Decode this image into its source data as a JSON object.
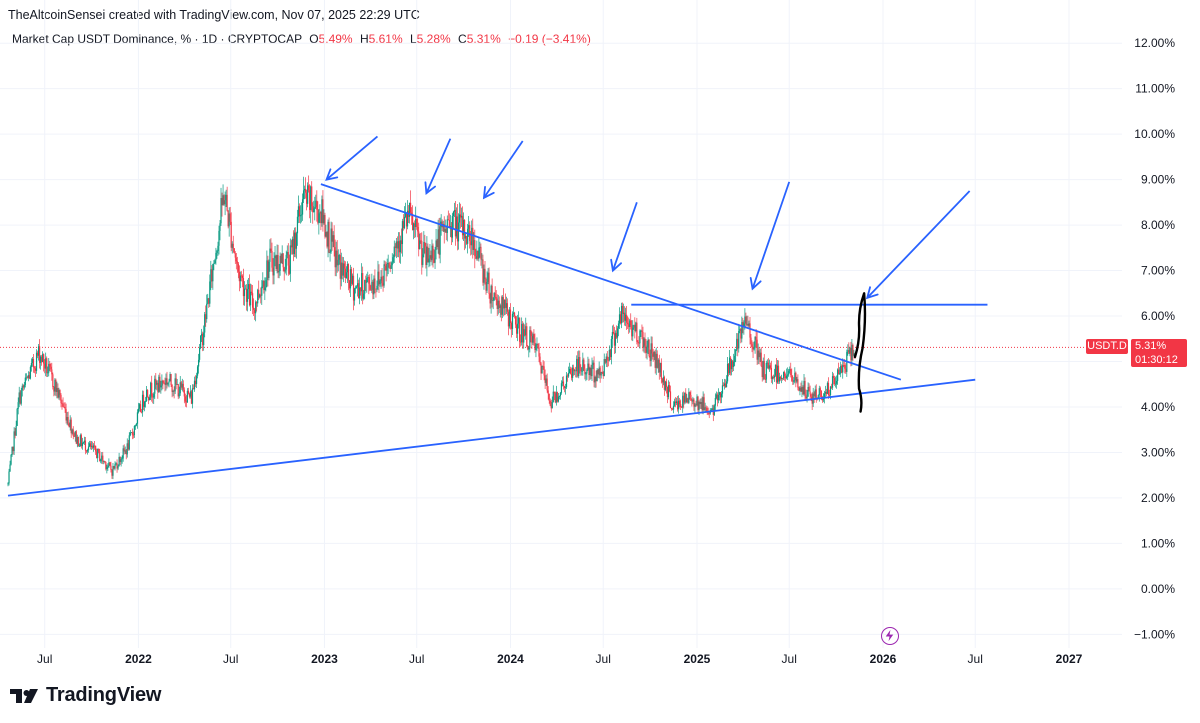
{
  "header": {
    "credit": "TheAltcoinSensei created with TradingView.com, Nov 07, 2025 22:29 UTC",
    "symbol": "Market Cap USDT Dominance, % · 1D · CRYPTOCAP",
    "o_key": "O",
    "o_val": "5.49%",
    "h_key": "H",
    "h_val": "5.61%",
    "l_key": "L",
    "l_val": "5.28%",
    "c_key": "C",
    "c_val": "5.31%",
    "change": "−0.19 (−3.41%)"
  },
  "price_label": {
    "ticker": "USDT.D",
    "price": "5.31%",
    "countdown": "01:30:12"
  },
  "brand": {
    "name": "TradingView"
  },
  "icons": {
    "logo": "tradingview-logo-icon",
    "event": "lightning-bolt-icon"
  },
  "colors": {
    "up": "#089981",
    "down": "#f23645",
    "trendline": "#2962ff",
    "drawing": "#000000"
  },
  "chart_data": {
    "type": "candlestick",
    "y_unit": "%",
    "ylim": [
      -1.3,
      12.4
    ],
    "y_ticks": [
      {
        "value": 12,
        "label": "12.00%"
      },
      {
        "value": 11,
        "label": "11.00%"
      },
      {
        "value": 10,
        "label": "10.00%"
      },
      {
        "value": 9,
        "label": "9.00%"
      },
      {
        "value": 8,
        "label": "8.00%"
      },
      {
        "value": 7,
        "label": "7.00%"
      },
      {
        "value": 6,
        "label": "6.00%"
      },
      {
        "value": 5,
        "label": "5.00%"
      },
      {
        "value": 4,
        "label": "4.00%"
      },
      {
        "value": 3,
        "label": "3.00%"
      },
      {
        "value": 2,
        "label": "2.00%"
      },
      {
        "value": 1,
        "label": "1.00%"
      },
      {
        "value": 0,
        "label": "0.00%"
      },
      {
        "value": -1,
        "label": "−1.00%"
      }
    ],
    "xlim": [
      "2021-04-20",
      "2027-04-15"
    ],
    "x_ticks": [
      {
        "date": "2021-07-01",
        "label": "Jul",
        "bold": false
      },
      {
        "date": "2022-01-01",
        "label": "2022",
        "bold": true
      },
      {
        "date": "2022-07-01",
        "label": "Jul",
        "bold": false
      },
      {
        "date": "2023-01-01",
        "label": "2023",
        "bold": true
      },
      {
        "date": "2023-07-01",
        "label": "Jul",
        "bold": false
      },
      {
        "date": "2024-01-01",
        "label": "2024",
        "bold": true
      },
      {
        "date": "2024-07-01",
        "label": "Jul",
        "bold": false
      },
      {
        "date": "2025-01-01",
        "label": "2025",
        "bold": true
      },
      {
        "date": "2025-07-01",
        "label": "Jul",
        "bold": false
      },
      {
        "date": "2026-01-01",
        "label": "2026",
        "bold": true
      },
      {
        "date": "2026-07-01",
        "label": "Jul",
        "bold": false
      },
      {
        "date": "2027-01-01",
        "label": "2027",
        "bold": true
      }
    ],
    "grid": true,
    "last_price": 5.31,
    "price_path": [
      {
        "date": "2021-04-20",
        "value": 2.3
      },
      {
        "date": "2021-05-12",
        "value": 4.2
      },
      {
        "date": "2021-06-20",
        "value": 5.2
      },
      {
        "date": "2021-07-20",
        "value": 4.5
      },
      {
        "date": "2021-09-01",
        "value": 3.3
      },
      {
        "date": "2021-10-10",
        "value": 3.0
      },
      {
        "date": "2021-11-10",
        "value": 2.6
      },
      {
        "date": "2021-12-10",
        "value": 3.1
      },
      {
        "date": "2022-01-15",
        "value": 4.3
      },
      {
        "date": "2022-02-25",
        "value": 4.6
      },
      {
        "date": "2022-04-15",
        "value": 4.2
      },
      {
        "date": "2022-05-10",
        "value": 5.8
      },
      {
        "date": "2022-06-18",
        "value": 8.7
      },
      {
        "date": "2022-07-15",
        "value": 7.0
      },
      {
        "date": "2022-08-15",
        "value": 6.2
      },
      {
        "date": "2022-09-15",
        "value": 7.2
      },
      {
        "date": "2022-10-25",
        "value": 7.2
      },
      {
        "date": "2022-11-20",
        "value": 8.6
      },
      {
        "date": "2022-12-25",
        "value": 8.3
      },
      {
        "date": "2023-01-25",
        "value": 7.2
      },
      {
        "date": "2023-03-01",
        "value": 6.6
      },
      {
        "date": "2023-04-20",
        "value": 6.8
      },
      {
        "date": "2023-06-15",
        "value": 8.2
      },
      {
        "date": "2023-07-20",
        "value": 7.2
      },
      {
        "date": "2023-09-05",
        "value": 8.1
      },
      {
        "date": "2023-10-20",
        "value": 7.7
      },
      {
        "date": "2023-11-20",
        "value": 6.6
      },
      {
        "date": "2024-01-10",
        "value": 5.8
      },
      {
        "date": "2024-02-20",
        "value": 5.3
      },
      {
        "date": "2024-03-20",
        "value": 4.1
      },
      {
        "date": "2024-05-10",
        "value": 4.9
      },
      {
        "date": "2024-06-25",
        "value": 4.7
      },
      {
        "date": "2024-08-05",
        "value": 6.0
      },
      {
        "date": "2024-09-10",
        "value": 5.6
      },
      {
        "date": "2024-10-15",
        "value": 5.0
      },
      {
        "date": "2024-11-15",
        "value": 4.0
      },
      {
        "date": "2024-12-20",
        "value": 4.2
      },
      {
        "date": "2025-02-01",
        "value": 3.9
      },
      {
        "date": "2025-03-10",
        "value": 5.0
      },
      {
        "date": "2025-04-08",
        "value": 5.9
      },
      {
        "date": "2025-05-10",
        "value": 4.8
      },
      {
        "date": "2025-07-01",
        "value": 4.7
      },
      {
        "date": "2025-08-15",
        "value": 4.2
      },
      {
        "date": "2025-09-20",
        "value": 4.4
      },
      {
        "date": "2025-10-15",
        "value": 4.9
      },
      {
        "date": "2025-11-07",
        "value": 5.31
      }
    ],
    "trendlines": [
      {
        "name": "descending-resistance",
        "from": {
          "date": "2022-12-25",
          "value": 8.9
        },
        "to": {
          "date": "2026-02-05",
          "value": 4.6
        }
      },
      {
        "name": "ascending-support",
        "from": {
          "date": "2021-04-20",
          "value": 2.05
        },
        "to": {
          "date": "2026-07-01",
          "value": 4.6
        }
      },
      {
        "name": "horizontal-resistance",
        "from": {
          "date": "2024-08-25",
          "value": 6.25
        },
        "to": {
          "date": "2026-07-25",
          "value": 6.25
        }
      }
    ],
    "arrows": [
      {
        "from": {
          "date": "2023-04-15",
          "value": 9.95
        },
        "to": {
          "date": "2023-01-05",
          "value": 9.0
        }
      },
      {
        "from": {
          "date": "2023-09-05",
          "value": 9.9
        },
        "to": {
          "date": "2023-07-20",
          "value": 8.7
        }
      },
      {
        "from": {
          "date": "2024-01-25",
          "value": 9.85
        },
        "to": {
          "date": "2023-11-10",
          "value": 8.6
        }
      },
      {
        "from": {
          "date": "2024-09-05",
          "value": 8.5
        },
        "to": {
          "date": "2024-07-20",
          "value": 7.0
        }
      },
      {
        "from": {
          "date": "2025-07-01",
          "value": 8.95
        },
        "to": {
          "date": "2025-04-20",
          "value": 6.6
        }
      },
      {
        "from": {
          "date": "2026-06-20",
          "value": 8.75
        },
        "to": {
          "date": "2025-12-01",
          "value": 6.4
        }
      }
    ],
    "drawing": [
      {
        "date": "2025-11-07",
        "value": 5.1
      },
      {
        "date": "2025-11-15",
        "value": 5.8
      },
      {
        "date": "2025-11-25",
        "value": 6.5
      },
      {
        "date": "2025-11-22",
        "value": 5.3
      },
      {
        "date": "2025-11-15",
        "value": 4.4
      },
      {
        "date": "2025-11-18",
        "value": 3.9
      }
    ]
  }
}
